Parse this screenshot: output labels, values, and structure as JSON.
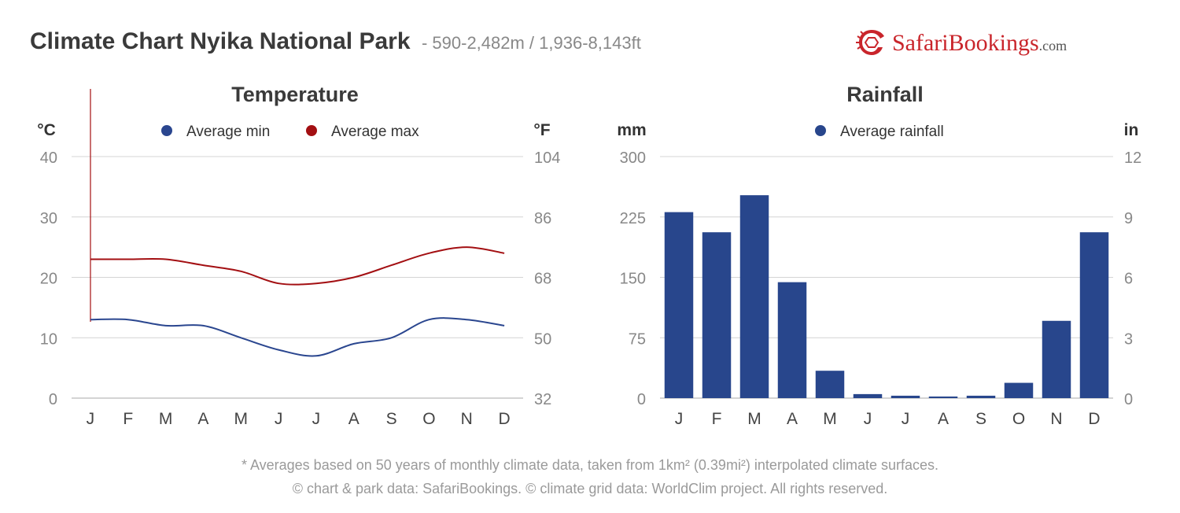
{
  "header": {
    "title": "Climate Chart Nyika National Park",
    "subtitle": "- 590-2,482m / 1,936-8,143ft"
  },
  "logo": {
    "text": "SafariBookings",
    "suffix": ".com"
  },
  "colors": {
    "min": "#2a468f",
    "max": "#a30f12",
    "rain": "#28468c",
    "grid": "#d4d4d4",
    "axis": "#888888"
  },
  "chart_data": [
    {
      "type": "line",
      "title": "Temperature",
      "left_unit": "°C",
      "right_unit": "°F",
      "categories": [
        "J",
        "F",
        "M",
        "A",
        "M",
        "J",
        "J",
        "A",
        "S",
        "O",
        "N",
        "D"
      ],
      "y_ticks": [
        0,
        10,
        20,
        30,
        40
      ],
      "y2_ticks": [
        32,
        50,
        68,
        86,
        104
      ],
      "ylim": [
        0,
        40
      ],
      "grid": true,
      "legend_position": "top",
      "series": [
        {
          "name": "Average min",
          "values": [
            13,
            13,
            12,
            12,
            10,
            8,
            7,
            9,
            10,
            13,
            13,
            12
          ]
        },
        {
          "name": "Average max",
          "values": [
            23,
            23,
            23,
            22,
            21,
            19,
            19,
            20,
            22,
            24,
            25,
            24
          ]
        }
      ]
    },
    {
      "type": "bar",
      "title": "Rainfall",
      "left_unit": "mm",
      "right_unit": "in",
      "categories": [
        "J",
        "F",
        "M",
        "A",
        "M",
        "J",
        "J",
        "A",
        "S",
        "O",
        "N",
        "D"
      ],
      "y_ticks": [
        0,
        75,
        150,
        225,
        300
      ],
      "y2_ticks": [
        0,
        3,
        6,
        9,
        12
      ],
      "ylim": [
        0,
        300
      ],
      "grid": true,
      "legend_position": "top",
      "series": [
        {
          "name": "Average rainfall",
          "values": [
            231,
            206,
            252,
            144,
            34,
            5,
            3,
            2,
            3,
            19,
            96,
            206
          ]
        }
      ]
    }
  ],
  "footer": {
    "line1": "* Averages based on 50 years of monthly climate data, taken from 1km² (0.39mi²) interpolated climate surfaces.",
    "line2": "© chart & park data: SafariBookings. © climate grid data: WorldClim project. All rights reserved."
  }
}
